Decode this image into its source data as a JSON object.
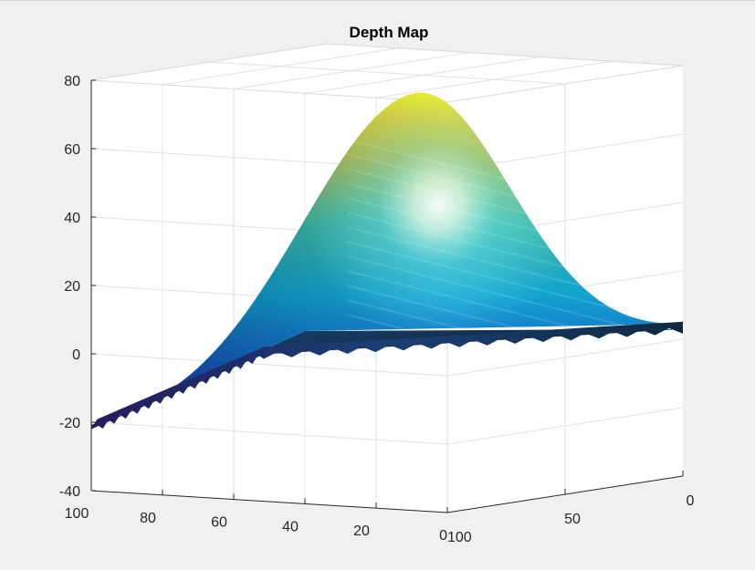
{
  "chart_data": {
    "type": "surface",
    "title": "Depth Map",
    "xlabel": "",
    "ylabel": "",
    "zlabel": "",
    "view": "3d",
    "grid": true,
    "box": true,
    "colormap": "parula",
    "lighting": "specular",
    "xlim": [
      0,
      100
    ],
    "ylim": [
      0,
      100
    ],
    "zlim": [
      -40,
      80
    ],
    "x_ticks": [
      "100",
      "80",
      "60",
      "40",
      "20",
      "0"
    ],
    "y_ticks": [
      "100",
      "50",
      "0"
    ],
    "z_ticks": [
      "80",
      "60",
      "40",
      "20",
      "0",
      "-20",
      "-40"
    ],
    "surface": {
      "peak_z": 75,
      "corner_z": {
        "x100_y100": -22,
        "x0_y100": 9,
        "x0_y0": 3,
        "x100_y0": 3
      }
    },
    "colors": {
      "low": "#352a87",
      "mid": "#0fa6d8",
      "high": "#f9fb0e",
      "shadow": "#0c2236",
      "background": "#f0f0f0",
      "axes": "#ffffff",
      "grid": "#e3e3e3"
    }
  }
}
